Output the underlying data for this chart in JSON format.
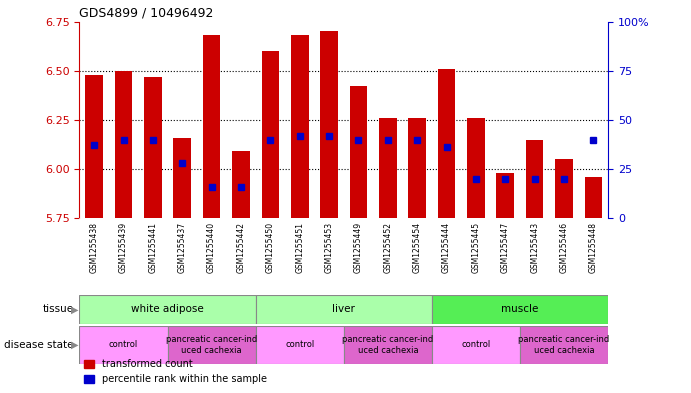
{
  "title": "GDS4899 / 10496492",
  "samples": [
    "GSM1255438",
    "GSM1255439",
    "GSM1255441",
    "GSM1255437",
    "GSM1255440",
    "GSM1255442",
    "GSM1255450",
    "GSM1255451",
    "GSM1255453",
    "GSM1255449",
    "GSM1255452",
    "GSM1255454",
    "GSM1255444",
    "GSM1255445",
    "GSM1255447",
    "GSM1255443",
    "GSM1255446",
    "GSM1255448"
  ],
  "transformed_count": [
    6.48,
    6.5,
    6.47,
    6.16,
    6.68,
    6.09,
    6.6,
    6.68,
    6.7,
    6.42,
    6.26,
    6.26,
    6.51,
    6.26,
    5.98,
    6.15,
    6.05,
    5.96
  ],
  "percentile_rank": [
    37,
    40,
    40,
    28,
    16,
    16,
    40,
    42,
    42,
    40,
    40,
    40,
    36,
    20,
    20,
    20,
    20,
    40
  ],
  "y_min": 5.75,
  "y_max": 6.75,
  "y_ticks_left": [
    5.75,
    6.0,
    6.25,
    6.5,
    6.75
  ],
  "y_ticks_right": [
    0,
    25,
    50,
    75,
    100
  ],
  "bar_color": "#cc0000",
  "dot_color": "#0000cc",
  "tissue_labels": [
    "white adipose",
    "liver",
    "muscle"
  ],
  "tissue_starts": [
    0,
    6,
    12
  ],
  "tissue_ends": [
    6,
    12,
    18
  ],
  "tissue_colors": [
    "#aaffaa",
    "#aaffaa",
    "#55ee55"
  ],
  "disease_labels": [
    "control",
    "pancreatic cancer-ind\nuced cachexia",
    "control",
    "pancreatic cancer-ind\nuced cachexia",
    "control",
    "pancreatic cancer-ind\nuced cachexia"
  ],
  "disease_starts": [
    0,
    3,
    6,
    9,
    12,
    15
  ],
  "disease_ends": [
    3,
    6,
    9,
    12,
    15,
    18
  ],
  "disease_colors": [
    "#ff99ff",
    "#dd66cc",
    "#ff99ff",
    "#dd66cc",
    "#ff99ff",
    "#dd66cc"
  ],
  "xticklabel_bg_color": "#dddddd",
  "plot_bg_color": "#ffffff"
}
